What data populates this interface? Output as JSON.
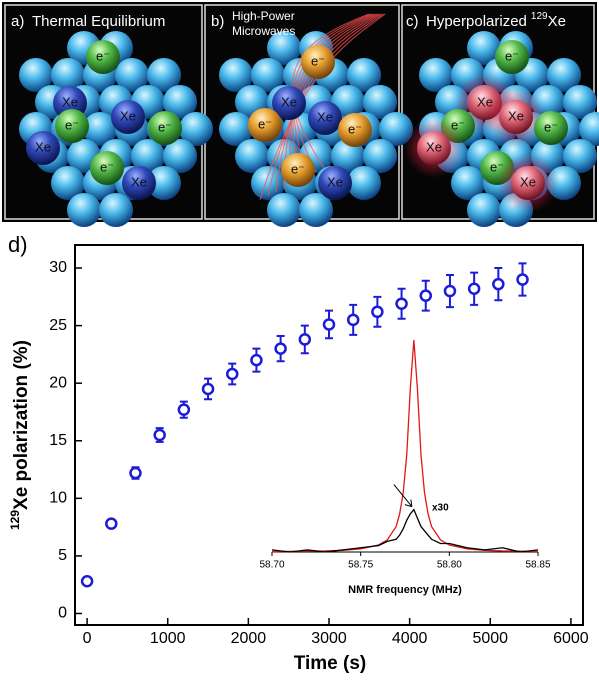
{
  "panels": [
    {
      "label": "a)",
      "title": "Thermal Equilibrium",
      "balls": [
        "e⁻",
        "Xe",
        "Xe",
        "e⁻",
        "e⁻",
        "Xe",
        "e⁻",
        "Xe"
      ]
    },
    {
      "label": "b)",
      "title": [
        "High-Power",
        "Microwaves"
      ],
      "balls": [
        "Xe",
        "e⁻",
        "Xe",
        "e⁻",
        "e⁻",
        "e⁻",
        "Xe"
      ]
    },
    {
      "label": "c)",
      "title": "Hyperpolarized",
      "title_sup": "129",
      "title_end": "Xe",
      "balls": [
        "e⁻",
        "Xe",
        "Xe",
        "e⁻",
        "Xe",
        "e⁻",
        "e⁻",
        "Xe"
      ]
    }
  ],
  "chart_data": [
    {
      "type": "scatter",
      "panel_label": "d)",
      "xlabel": "Time (s)",
      "ylabel_sup": "129",
      "ylabel": "Xe polarization (%)",
      "x": [
        0,
        300,
        600,
        900,
        1200,
        1500,
        1800,
        2100,
        2400,
        2700,
        3000,
        3300,
        3600,
        3900,
        4200,
        4500,
        4800,
        5100,
        5400
      ],
      "series": [
        {
          "color": "#1c1cd8",
          "values": [
            2.8,
            7.8,
            12.2,
            15.5,
            17.7,
            19.5,
            20.8,
            22.0,
            23.0,
            23.8,
            25.1,
            25.5,
            26.2,
            26.9,
            27.6,
            28.0,
            28.2,
            28.6,
            29.0
          ],
          "errors": [
            0.2,
            0.3,
            0.5,
            0.6,
            0.7,
            0.9,
            0.9,
            1.0,
            1.1,
            1.2,
            1.2,
            1.3,
            1.3,
            1.3,
            1.3,
            1.4,
            1.4,
            1.4,
            1.4
          ]
        }
      ],
      "xlim": [
        -150,
        6150
      ],
      "ylim": [
        -1,
        32
      ],
      "xticks": [
        0,
        1000,
        2000,
        3000,
        4000,
        5000,
        6000
      ],
      "yticks": [
        0,
        5,
        10,
        15,
        20,
        25,
        30
      ]
    },
    {
      "type": "line",
      "xlabel": "NMR frequency (MHz)",
      "x": [
        58.7,
        58.71,
        58.72,
        58.73,
        58.74,
        58.75,
        58.76,
        58.765,
        58.77,
        58.772,
        58.774,
        58.776,
        58.778,
        58.78,
        58.782,
        58.784,
        58.786,
        58.788,
        58.79,
        58.795,
        58.8,
        58.81,
        58.82,
        58.83,
        58.84,
        58.85
      ],
      "series": [
        {
          "color": "#e01818",
          "values": [
            0.002,
            0.003,
            0.004,
            0.005,
            0.008,
            0.015,
            0.033,
            0.057,
            0.12,
            0.18,
            0.28,
            0.46,
            0.77,
            1.0,
            0.77,
            0.46,
            0.28,
            0.18,
            0.12,
            0.057,
            0.033,
            0.015,
            0.008,
            0.005,
            0.004,
            0.003
          ]
        },
        {
          "color": "#000000",
          "values": [
            0.01,
            0.0,
            0.01,
            0.0,
            0.01,
            0.02,
            0.03,
            0.05,
            0.06,
            0.08,
            0.11,
            0.15,
            0.18,
            0.2,
            0.16,
            0.12,
            0.1,
            0.08,
            0.06,
            0.04,
            0.04,
            0.02,
            0.01,
            0.02,
            0.0,
            0.01
          ]
        }
      ],
      "xlim": [
        58.7,
        58.85
      ],
      "ylim": [
        0,
        1
      ],
      "xticks": [
        {
          "value": 58.7,
          "label": "58.70"
        },
        {
          "value": 58.75,
          "label": "58.75"
        },
        {
          "value": 58.8,
          "label": "58.80"
        },
        {
          "value": 58.85,
          "label": "58.85"
        }
      ],
      "annotation": "x30"
    }
  ]
}
